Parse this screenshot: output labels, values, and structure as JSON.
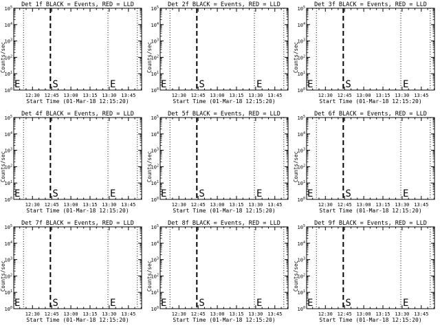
{
  "chart_data": [
    {
      "type": "line",
      "title": "Det 1f BLACK = Events, RED = LLD",
      "xlabel": "Start Time (01-Mar-18 12:15:20)",
      "ylabel": "Counts/sec",
      "xlim": [
        "12:15:20",
        "13:55:20"
      ],
      "ylim": [
        1,
        100000
      ],
      "yscale": "log",
      "xticks": [
        "12:30",
        "12:45",
        "13:00",
        "13:15",
        "13:30",
        "13:45"
      ],
      "yticks": [
        {
          "base": "10",
          "exp": "0"
        },
        {
          "base": "10",
          "exp": "1"
        },
        {
          "base": "10",
          "exp": "2"
        },
        {
          "base": "10",
          "exp": "3"
        },
        {
          "base": "10",
          "exp": "4"
        },
        {
          "base": "10",
          "exp": "5"
        }
      ],
      "dotted_lines": [
        "12:23",
        "13:29",
        "13:52"
      ],
      "dashed_lines": [
        "12:44"
      ],
      "markers": [
        {
          "label": "E",
          "x": "12:15:20"
        },
        {
          "label": "S",
          "x": "12:44"
        },
        {
          "label": "E",
          "x": "13:29"
        }
      ],
      "grid": false,
      "series": []
    },
    {
      "type": "line",
      "title": "Det 2f BLACK = Events, RED = LLD",
      "xlabel": "Start Time (01-Mar-18 12:15:20)",
      "ylabel": "Counts/sec",
      "xlim": [
        "12:15:20",
        "13:55:20"
      ],
      "ylim": [
        1,
        100000
      ],
      "yscale": "log",
      "xticks": [
        "12:30",
        "12:45",
        "13:00",
        "13:15",
        "13:30",
        "13:45"
      ],
      "yticks": [
        {
          "base": "10",
          "exp": "0"
        },
        {
          "base": "10",
          "exp": "1"
        },
        {
          "base": "10",
          "exp": "2"
        },
        {
          "base": "10",
          "exp": "3"
        },
        {
          "base": "10",
          "exp": "4"
        },
        {
          "base": "10",
          "exp": "5"
        }
      ],
      "dotted_lines": [
        "12:23",
        "13:29",
        "13:52"
      ],
      "dashed_lines": [
        "12:44"
      ],
      "markers": [
        {
          "label": "E",
          "x": "12:15:20"
        },
        {
          "label": "S",
          "x": "12:44"
        },
        {
          "label": "E",
          "x": "13:29"
        }
      ],
      "grid": false,
      "series": []
    },
    {
      "type": "line",
      "title": "Det 3f BLACK = Events, RED = LLD",
      "xlabel": "Start Time (01-Mar-18 12:15:20)",
      "ylabel": "Counts/sec",
      "xlim": [
        "12:15:20",
        "13:55:20"
      ],
      "ylim": [
        1,
        100000
      ],
      "yscale": "log",
      "xticks": [
        "12:30",
        "12:45",
        "13:00",
        "13:15",
        "13:30",
        "13:45"
      ],
      "yticks": [
        {
          "base": "10",
          "exp": "0"
        },
        {
          "base": "10",
          "exp": "1"
        },
        {
          "base": "10",
          "exp": "2"
        },
        {
          "base": "10",
          "exp": "3"
        },
        {
          "base": "10",
          "exp": "4"
        },
        {
          "base": "10",
          "exp": "5"
        }
      ],
      "dotted_lines": [
        "12:23",
        "13:29",
        "13:52"
      ],
      "dashed_lines": [
        "12:44"
      ],
      "markers": [
        {
          "label": "E",
          "x": "12:15:20"
        },
        {
          "label": "S",
          "x": "12:44"
        },
        {
          "label": "E",
          "x": "13:29"
        }
      ],
      "grid": false,
      "series": []
    },
    {
      "type": "line",
      "title": "Det 4f BLACK = Events, RED = LLD",
      "xlabel": "Start Time (01-Mar-18 12:15:20)",
      "ylabel": "Counts/sec",
      "xlim": [
        "12:15:20",
        "13:55:20"
      ],
      "ylim": [
        1,
        100000
      ],
      "yscale": "log",
      "xticks": [
        "12:30",
        "12:45",
        "13:00",
        "13:15",
        "13:30",
        "13:45"
      ],
      "yticks": [
        {
          "base": "10",
          "exp": "0"
        },
        {
          "base": "10",
          "exp": "1"
        },
        {
          "base": "10",
          "exp": "2"
        },
        {
          "base": "10",
          "exp": "3"
        },
        {
          "base": "10",
          "exp": "4"
        },
        {
          "base": "10",
          "exp": "5"
        }
      ],
      "dotted_lines": [
        "12:23",
        "13:29",
        "13:52"
      ],
      "dashed_lines": [
        "12:44"
      ],
      "markers": [
        {
          "label": "E",
          "x": "12:15:20"
        },
        {
          "label": "S",
          "x": "12:44"
        },
        {
          "label": "E",
          "x": "13:29"
        }
      ],
      "grid": false,
      "series": []
    },
    {
      "type": "line",
      "title": "Det 5f BLACK = Events, RED = LLD",
      "xlabel": "Start Time (01-Mar-18 12:15:20)",
      "ylabel": "Counts/sec",
      "xlim": [
        "12:15:20",
        "13:55:20"
      ],
      "ylim": [
        1,
        100000
      ],
      "yscale": "log",
      "xticks": [
        "12:30",
        "12:45",
        "13:00",
        "13:15",
        "13:30",
        "13:45"
      ],
      "yticks": [
        {
          "base": "10",
          "exp": "0"
        },
        {
          "base": "10",
          "exp": "1"
        },
        {
          "base": "10",
          "exp": "2"
        },
        {
          "base": "10",
          "exp": "3"
        },
        {
          "base": "10",
          "exp": "4"
        },
        {
          "base": "10",
          "exp": "5"
        }
      ],
      "dotted_lines": [
        "12:23",
        "13:29",
        "13:52"
      ],
      "dashed_lines": [
        "12:44"
      ],
      "markers": [
        {
          "label": "E",
          "x": "12:15:20"
        },
        {
          "label": "S",
          "x": "12:44"
        },
        {
          "label": "E",
          "x": "13:29"
        }
      ],
      "grid": false,
      "series": []
    },
    {
      "type": "line",
      "title": "Det 6f BLACK = Events, RED = LLD",
      "xlabel": "Start Time (01-Mar-18 12:15:20)",
      "ylabel": "Counts/sec",
      "xlim": [
        "12:15:20",
        "13:55:20"
      ],
      "ylim": [
        1,
        100000
      ],
      "yscale": "log",
      "xticks": [
        "12:30",
        "12:45",
        "13:00",
        "13:15",
        "13:30",
        "13:45"
      ],
      "yticks": [
        {
          "base": "10",
          "exp": "0"
        },
        {
          "base": "10",
          "exp": "1"
        },
        {
          "base": "10",
          "exp": "2"
        },
        {
          "base": "10",
          "exp": "3"
        },
        {
          "base": "10",
          "exp": "4"
        },
        {
          "base": "10",
          "exp": "5"
        }
      ],
      "dotted_lines": [
        "12:23",
        "13:29",
        "13:52"
      ],
      "dashed_lines": [
        "12:44"
      ],
      "markers": [
        {
          "label": "E",
          "x": "12:15:20"
        },
        {
          "label": "S",
          "x": "12:44"
        },
        {
          "label": "E",
          "x": "13:29"
        }
      ],
      "grid": false,
      "series": []
    },
    {
      "type": "line",
      "title": "Det 7f BLACK = Events, RED = LLD",
      "xlabel": "Start Time (01-Mar-18 12:15:20)",
      "ylabel": "Counts/sec",
      "xlim": [
        "12:15:20",
        "13:55:20"
      ],
      "ylim": [
        1,
        100000
      ],
      "yscale": "log",
      "xticks": [
        "12:30",
        "12:45",
        "13:00",
        "13:15",
        "13:30",
        "13:45"
      ],
      "yticks": [
        {
          "base": "10",
          "exp": "0"
        },
        {
          "base": "10",
          "exp": "1"
        },
        {
          "base": "10",
          "exp": "2"
        },
        {
          "base": "10",
          "exp": "3"
        },
        {
          "base": "10",
          "exp": "4"
        },
        {
          "base": "10",
          "exp": "5"
        }
      ],
      "dotted_lines": [
        "12:23",
        "13:29",
        "13:52"
      ],
      "dashed_lines": [
        "12:44"
      ],
      "markers": [
        {
          "label": "E",
          "x": "12:15:20"
        },
        {
          "label": "S",
          "x": "12:44"
        },
        {
          "label": "E",
          "x": "13:29"
        }
      ],
      "grid": false,
      "series": []
    },
    {
      "type": "line",
      "title": "Det 8f BLACK = Events, RED = LLD",
      "xlabel": "Start Time (01-Mar-18 12:15:20)",
      "ylabel": "Counts/sec",
      "xlim": [
        "12:15:20",
        "13:55:20"
      ],
      "ylim": [
        1,
        100000
      ],
      "yscale": "log",
      "xticks": [
        "12:30",
        "12:45",
        "13:00",
        "13:15",
        "13:30",
        "13:45"
      ],
      "yticks": [
        {
          "base": "10",
          "exp": "0"
        },
        {
          "base": "10",
          "exp": "1"
        },
        {
          "base": "10",
          "exp": "2"
        },
        {
          "base": "10",
          "exp": "3"
        },
        {
          "base": "10",
          "exp": "4"
        },
        {
          "base": "10",
          "exp": "5"
        }
      ],
      "dotted_lines": [
        "12:23",
        "13:29",
        "13:52"
      ],
      "dashed_lines": [
        "12:44"
      ],
      "markers": [
        {
          "label": "E",
          "x": "12:15:20"
        },
        {
          "label": "S",
          "x": "12:44"
        },
        {
          "label": "E",
          "x": "13:29"
        }
      ],
      "grid": false,
      "series": []
    },
    {
      "type": "line",
      "title": "Det 9f BLACK = Events, RED = LLD",
      "xlabel": "Start Time (01-Mar-18 12:15:20)",
      "ylabel": "Counts/sec",
      "xlim": [
        "12:15:20",
        "13:55:20"
      ],
      "ylim": [
        1,
        100000
      ],
      "yscale": "log",
      "xticks": [
        "12:30",
        "12:45",
        "13:00",
        "13:15",
        "13:30",
        "13:45"
      ],
      "yticks": [
        {
          "base": "10",
          "exp": "0"
        },
        {
          "base": "10",
          "exp": "1"
        },
        {
          "base": "10",
          "exp": "2"
        },
        {
          "base": "10",
          "exp": "3"
        },
        {
          "base": "10",
          "exp": "4"
        },
        {
          "base": "10",
          "exp": "5"
        }
      ],
      "dotted_lines": [
        "12:23",
        "13:29",
        "13:52"
      ],
      "dashed_lines": [
        "12:44"
      ],
      "markers": [
        {
          "label": "E",
          "x": "12:15:20"
        },
        {
          "label": "S",
          "x": "12:44"
        },
        {
          "label": "E",
          "x": "13:29"
        }
      ],
      "grid": false,
      "series": []
    }
  ]
}
